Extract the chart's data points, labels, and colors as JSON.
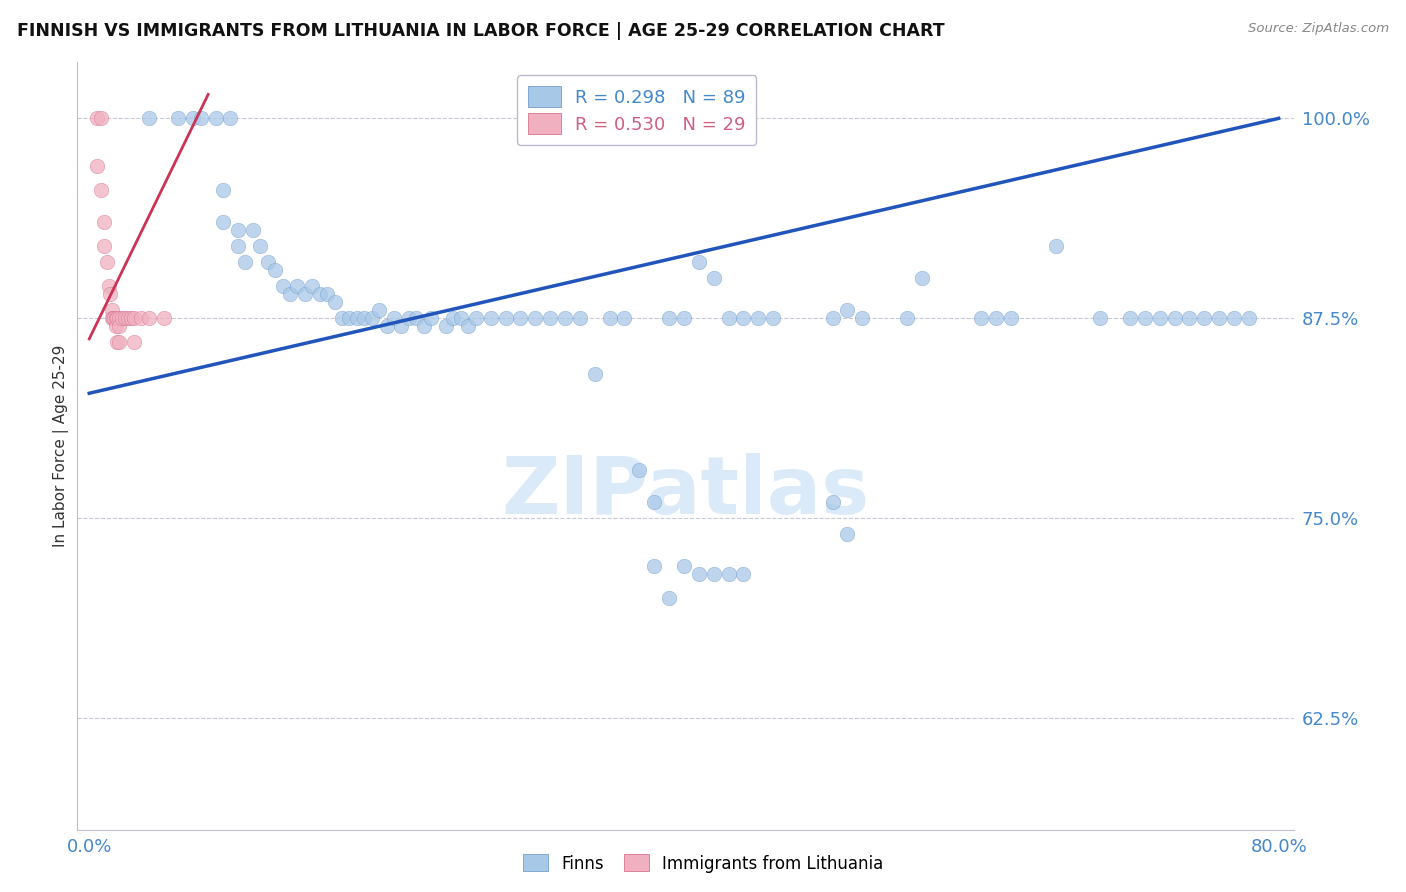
{
  "title": "FINNISH VS IMMIGRANTS FROM LITHUANIA IN LABOR FORCE | AGE 25-29 CORRELATION CHART",
  "source": "Source: ZipAtlas.com",
  "ylabel": "In Labor Force | Age 25-29",
  "x_min": 0.0,
  "x_max": 0.8,
  "y_min": 0.555,
  "y_max": 1.035,
  "yticks": [
    0.625,
    0.75,
    0.875,
    1.0
  ],
  "ytick_labels": [
    "62.5%",
    "75.0%",
    "87.5%",
    "100.0%"
  ],
  "xticks": [
    0.0,
    0.1,
    0.2,
    0.3,
    0.4,
    0.5,
    0.6,
    0.7,
    0.8
  ],
  "xtick_labels": [
    "0.0%",
    "",
    "",
    "",
    "",
    "",
    "",
    "",
    "80.0%"
  ],
  "legend_blue_label": "R = 0.298   N = 89",
  "legend_pink_label": "R = 0.530   N = 29",
  "finns_label": "Finns",
  "lithuania_label": "Immigrants from Lithuania",
  "blue_color": "#a8c8e8",
  "blue_edge_color": "#6090c0",
  "pink_color": "#f0b0c0",
  "pink_edge_color": "#d06080",
  "blue_line_color": "#2255bb",
  "pink_line_color": "#cc3355",
  "axis_label_color": "#4488cc",
  "watermark_color": "#daeaf8",
  "blue_line_x0": 0.0,
  "blue_line_y0": 0.828,
  "blue_line_x1": 0.8,
  "blue_line_y1": 1.0,
  "pink_line_x0": 0.0,
  "pink_line_y0": 0.862,
  "pink_line_x1": 0.08,
  "pink_line_y1": 1.015,
  "finns_x": [
    0.04,
    0.06,
    0.07,
    0.075,
    0.085,
    0.09,
    0.09,
    0.095,
    0.1,
    0.1,
    0.105,
    0.11,
    0.115,
    0.12,
    0.125,
    0.13,
    0.135,
    0.14,
    0.145,
    0.15,
    0.155,
    0.16,
    0.165,
    0.17,
    0.175,
    0.18,
    0.185,
    0.19,
    0.195,
    0.2,
    0.205,
    0.21,
    0.215,
    0.22,
    0.225,
    0.23,
    0.24,
    0.245,
    0.25,
    0.255,
    0.26,
    0.27,
    0.28,
    0.29,
    0.3,
    0.31,
    0.32,
    0.33,
    0.34,
    0.35,
    0.36,
    0.37,
    0.38,
    0.39,
    0.4,
    0.41,
    0.42,
    0.43,
    0.44,
    0.45,
    0.46,
    0.5,
    0.51,
    0.52,
    0.55,
    0.56,
    0.6,
    0.61,
    0.62,
    0.65,
    0.68,
    0.7,
    0.71,
    0.72,
    0.73,
    0.74,
    0.75,
    0.76,
    0.77,
    0.78,
    0.5,
    0.51,
    0.38,
    0.39,
    0.4,
    0.41,
    0.42,
    0.43,
    0.44
  ],
  "finns_y": [
    1.0,
    1.0,
    1.0,
    1.0,
    1.0,
    0.955,
    0.935,
    1.0,
    0.93,
    0.92,
    0.91,
    0.93,
    0.92,
    0.91,
    0.905,
    0.895,
    0.89,
    0.895,
    0.89,
    0.895,
    0.89,
    0.89,
    0.885,
    0.875,
    0.875,
    0.875,
    0.875,
    0.875,
    0.88,
    0.87,
    0.875,
    0.87,
    0.875,
    0.875,
    0.87,
    0.875,
    0.87,
    0.875,
    0.875,
    0.87,
    0.875,
    0.875,
    0.875,
    0.875,
    0.875,
    0.875,
    0.875,
    0.875,
    0.84,
    0.875,
    0.875,
    0.78,
    0.76,
    0.875,
    0.875,
    0.91,
    0.9,
    0.875,
    0.875,
    0.875,
    0.875,
    0.875,
    0.88,
    0.875,
    0.875,
    0.9,
    0.875,
    0.875,
    0.875,
    0.92,
    0.875,
    0.875,
    0.875,
    0.875,
    0.875,
    0.875,
    0.875,
    0.875,
    0.875,
    0.875,
    0.76,
    0.74,
    0.72,
    0.7,
    0.72,
    0.715,
    0.715,
    0.715,
    0.715
  ],
  "lithuania_x": [
    0.005,
    0.005,
    0.008,
    0.008,
    0.01,
    0.01,
    0.012,
    0.013,
    0.014,
    0.015,
    0.015,
    0.016,
    0.017,
    0.018,
    0.018,
    0.019,
    0.019,
    0.02,
    0.02,
    0.02,
    0.022,
    0.024,
    0.026,
    0.028,
    0.03,
    0.03,
    0.035,
    0.04,
    0.05
  ],
  "lithuania_y": [
    1.0,
    0.97,
    1.0,
    0.955,
    0.935,
    0.92,
    0.91,
    0.895,
    0.89,
    0.88,
    0.875,
    0.875,
    0.875,
    0.875,
    0.87,
    0.875,
    0.86,
    0.875,
    0.87,
    0.86,
    0.875,
    0.875,
    0.875,
    0.875,
    0.875,
    0.86,
    0.875,
    0.875,
    0.875
  ]
}
